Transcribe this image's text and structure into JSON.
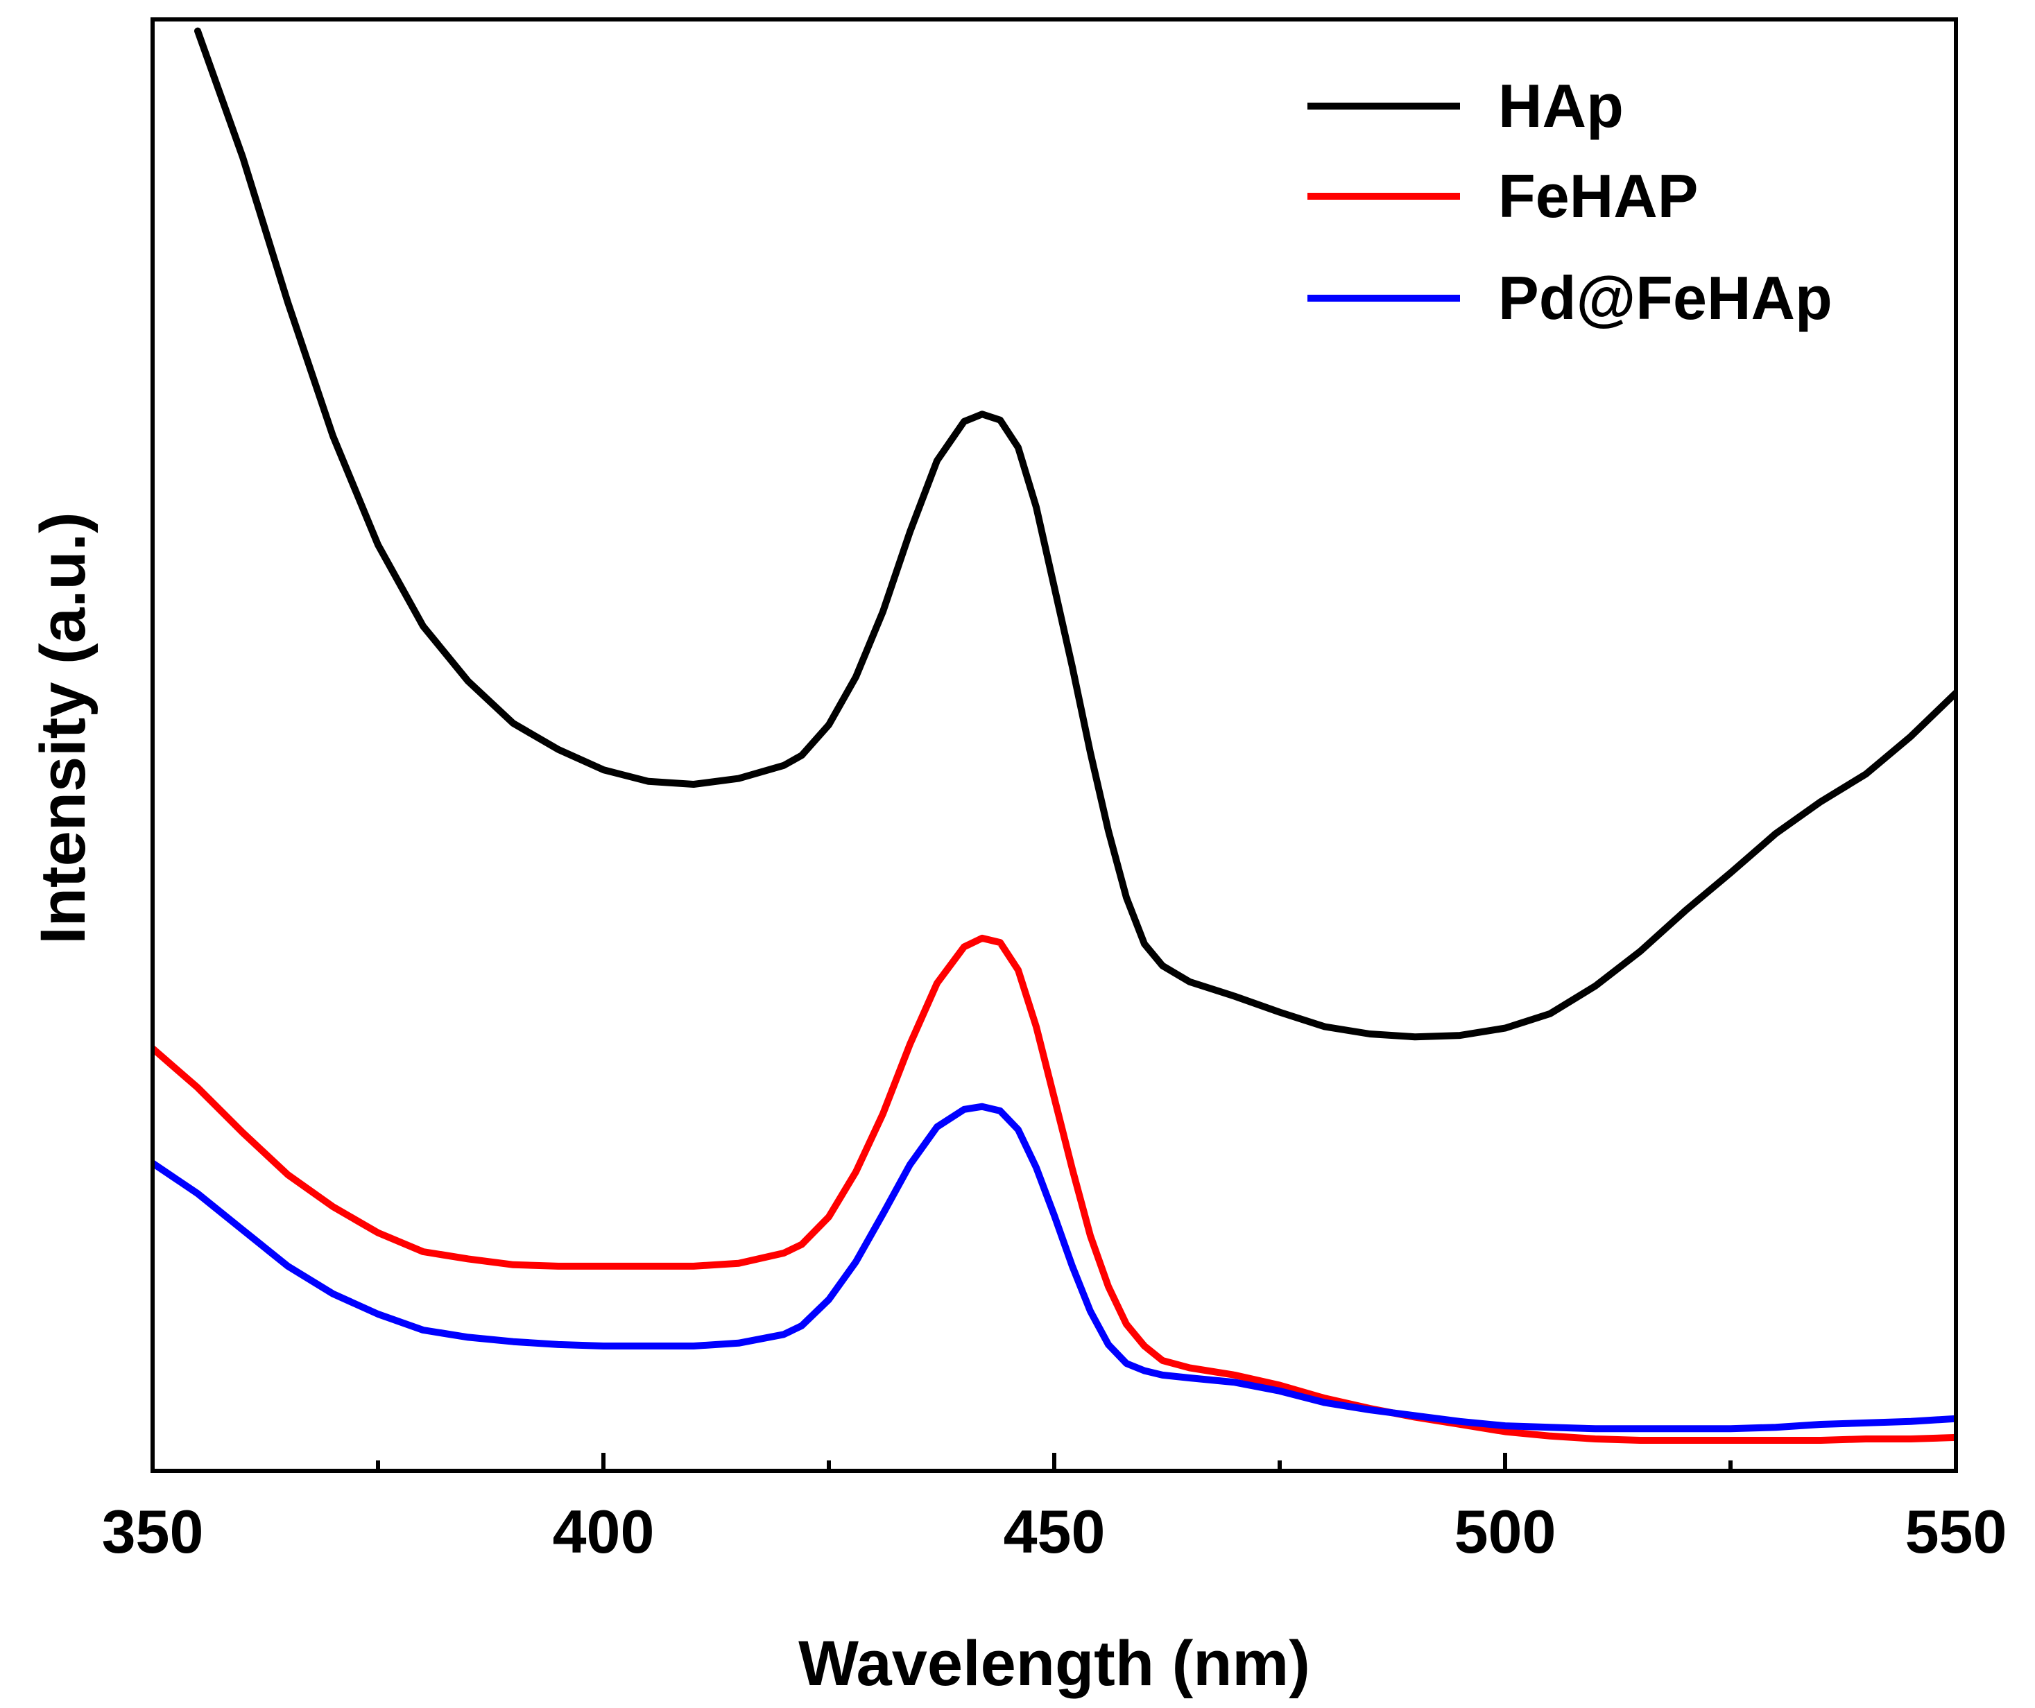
{
  "chart_data": {
    "type": "line",
    "title": "",
    "xlabel": "Wavelength (nm)",
    "ylabel": "Intensity (a.u.)",
    "xlim": [
      350,
      550
    ],
    "ylim": [
      0,
      100
    ],
    "x_ticks": [
      350,
      400,
      450,
      500,
      550
    ],
    "x_minor_ticks": [
      375,
      425,
      475,
      525
    ],
    "y_ticks_shown": false,
    "grid": false,
    "legend_position": "top-right",
    "series": [
      {
        "name": "HAp",
        "color": "#000000",
        "x": [
          355,
          360,
          365,
          370,
          375,
          380,
          385,
          390,
          395,
          400,
          405,
          410,
          415,
          420,
          422,
          425,
          428,
          431,
          434,
          437,
          440,
          442,
          444,
          446,
          448,
          450,
          452,
          454,
          456,
          458,
          460,
          462,
          465,
          470,
          475,
          480,
          485,
          490,
          495,
          500,
          505,
          510,
          515,
          520,
          525,
          530,
          535,
          540,
          545,
          550
        ],
        "values": [
          99.2,
          90.5,
          80.5,
          71.3,
          63.8,
          58.2,
          54.4,
          51.5,
          49.7,
          48.3,
          47.5,
          47.3,
          47.7,
          48.6,
          49.3,
          51.4,
          54.7,
          59.2,
          64.7,
          69.6,
          72.3,
          72.8,
          72.4,
          70.5,
          66.4,
          60.9,
          55.4,
          49.5,
          44.1,
          39.5,
          36.3,
          34.8,
          33.7,
          32.7,
          31.6,
          30.6,
          30.1,
          29.9,
          30.0,
          30.5,
          31.5,
          33.4,
          35.8,
          38.6,
          41.2,
          43.9,
          46.1,
          48.0,
          50.6,
          53.6
        ]
      },
      {
        "name": "FeHAP",
        "color": "#ff0000",
        "x": [
          350,
          355,
          360,
          365,
          370,
          375,
          380,
          385,
          390,
          395,
          400,
          405,
          410,
          415,
          420,
          422,
          425,
          428,
          431,
          434,
          437,
          440,
          442,
          444,
          446,
          448,
          450,
          452,
          454,
          456,
          458,
          460,
          462,
          465,
          470,
          475,
          480,
          485,
          490,
          495,
          500,
          505,
          510,
          515,
          520,
          525,
          530,
          535,
          540,
          545,
          550
        ],
        "values": [
          29.1,
          26.4,
          23.3,
          20.4,
          18.2,
          16.4,
          15.1,
          14.6,
          14.2,
          14.1,
          14.1,
          14.1,
          14.1,
          14.3,
          15.0,
          15.6,
          17.5,
          20.6,
          24.6,
          29.4,
          33.6,
          36.1,
          36.7,
          36.4,
          34.5,
          30.6,
          25.7,
          20.8,
          16.2,
          12.7,
          10.1,
          8.6,
          7.6,
          7.1,
          6.6,
          5.9,
          5.0,
          4.3,
          3.7,
          3.2,
          2.7,
          2.4,
          2.2,
          2.1,
          2.1,
          2.1,
          2.1,
          2.1,
          2.2,
          2.2,
          2.3
        ]
      },
      {
        "name": "Pd@FeHAp",
        "color": "#0000ff",
        "x": [
          350,
          355,
          360,
          365,
          370,
          375,
          380,
          385,
          390,
          395,
          400,
          405,
          410,
          415,
          420,
          422,
          425,
          428,
          431,
          434,
          437,
          440,
          442,
          444,
          446,
          448,
          450,
          452,
          454,
          456,
          458,
          460,
          462,
          465,
          470,
          475,
          480,
          485,
          490,
          495,
          500,
          505,
          510,
          515,
          520,
          525,
          530,
          535,
          540,
          545,
          550
        ],
        "values": [
          21.2,
          19.1,
          16.6,
          14.1,
          12.2,
          10.8,
          9.7,
          9.2,
          8.9,
          8.7,
          8.6,
          8.6,
          8.6,
          8.8,
          9.4,
          10.0,
          11.8,
          14.4,
          17.7,
          21.1,
          23.7,
          24.9,
          25.1,
          24.8,
          23.5,
          20.9,
          17.6,
          14.1,
          11.0,
          8.7,
          7.4,
          6.9,
          6.6,
          6.4,
          6.1,
          5.5,
          4.7,
          4.2,
          3.8,
          3.4,
          3.1,
          3.0,
          2.9,
          2.9,
          2.9,
          2.9,
          3.0,
          3.2,
          3.3,
          3.4,
          3.6
        ]
      }
    ]
  }
}
